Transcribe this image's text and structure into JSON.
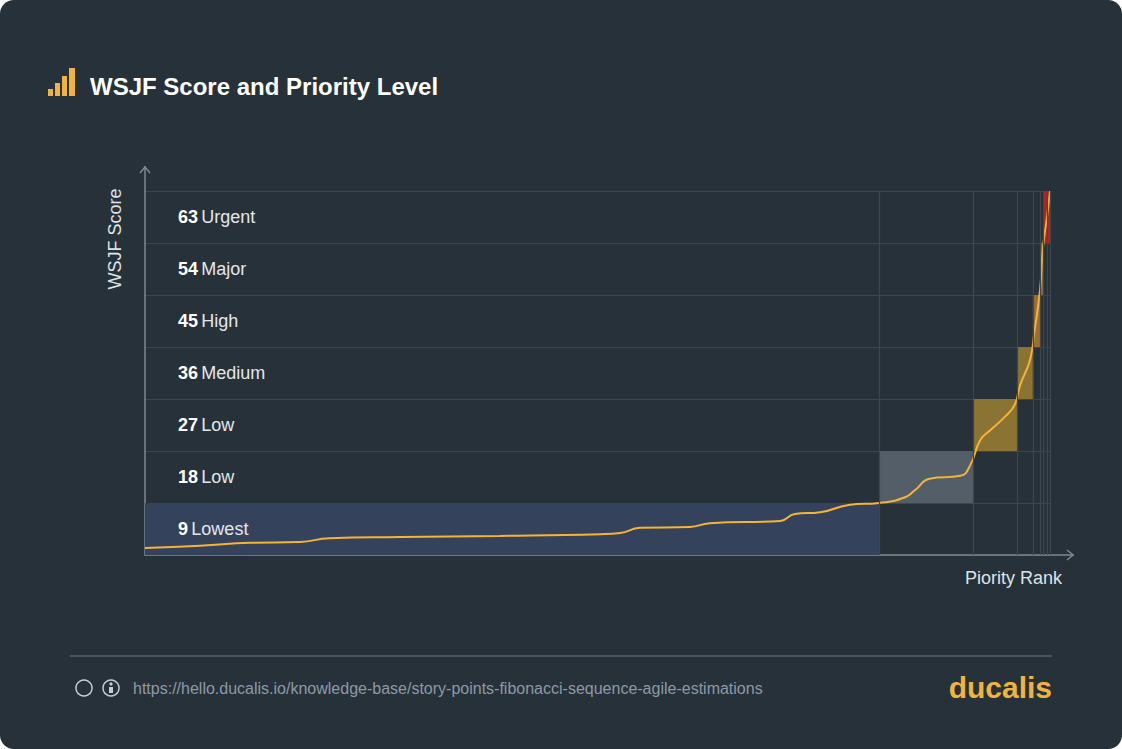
{
  "chart_data": {
    "type": "line",
    "title": "WSJF Score and Priority Level",
    "y_label": "WSJF Score",
    "x_label": "Piority Rank",
    "x": [
      0,
      6.1,
      11.6,
      17.1,
      20.4,
      28.2,
      39.2,
      50.3,
      52.5,
      54.7,
      60.2,
      62.4,
      70.2,
      71.8,
      74.6,
      77.9,
      81.1,
      84.0,
      85.1,
      86.7,
      90.1,
      91.2,
      92.3,
      93.4,
      95.0,
      96.1,
      96.7,
      97.8,
      98.3,
      98.9,
      99.2,
      99.7,
      100
    ],
    "values": [
      1.2,
      1.6,
      2.1,
      2.25,
      2.9,
      3.1,
      3.3,
      3.6,
      3.8,
      4.7,
      4.85,
      5.5,
      5.9,
      7.1,
      7.4,
      8.7,
      9.0,
      10.0,
      11.25,
      13.2,
      13.7,
      15.6,
      19.9,
      21.6,
      23.9,
      26.0,
      29.4,
      33.8,
      38.9,
      45.9,
      52.8,
      58.9,
      63.0
    ],
    "color": "#f5b437",
    "xlim": [
      0,
      100
    ],
    "xticks": [
      81.1,
      91.5,
      96.4,
      98.1,
      98.9,
      99.3,
      99.7,
      100
    ],
    "ylim": [
      0,
      63
    ],
    "yticks": [
      0,
      9,
      18,
      27,
      36,
      45,
      54,
      63
    ],
    "grid": true,
    "tick_labels": false,
    "levels": {
      "values": [
        9,
        18,
        27,
        36,
        45,
        54,
        63
      ],
      "labels": [
        "Lowest",
        "Low",
        "Low",
        "Medium",
        "High",
        "Major",
        "Urgent"
      ],
      "rank_start": [
        0,
        81.1,
        91.5,
        96.4,
        98.1,
        98.9,
        99.3
      ],
      "rank_end": [
        81.1,
        91.5,
        96.4,
        98.1,
        98.9,
        99.3,
        100
      ],
      "colors": [
        "#35425c",
        "#535e69",
        "#8b7334",
        "#8b7334",
        "#9a6f30",
        "#9a6a2d",
        "#b3261e"
      ]
    }
  },
  "footer": {
    "url": "https://hello.ducalis.io/knowledge-base/story-points-fibonacci-sequence-agile-estimations",
    "brand": "ducalis"
  }
}
